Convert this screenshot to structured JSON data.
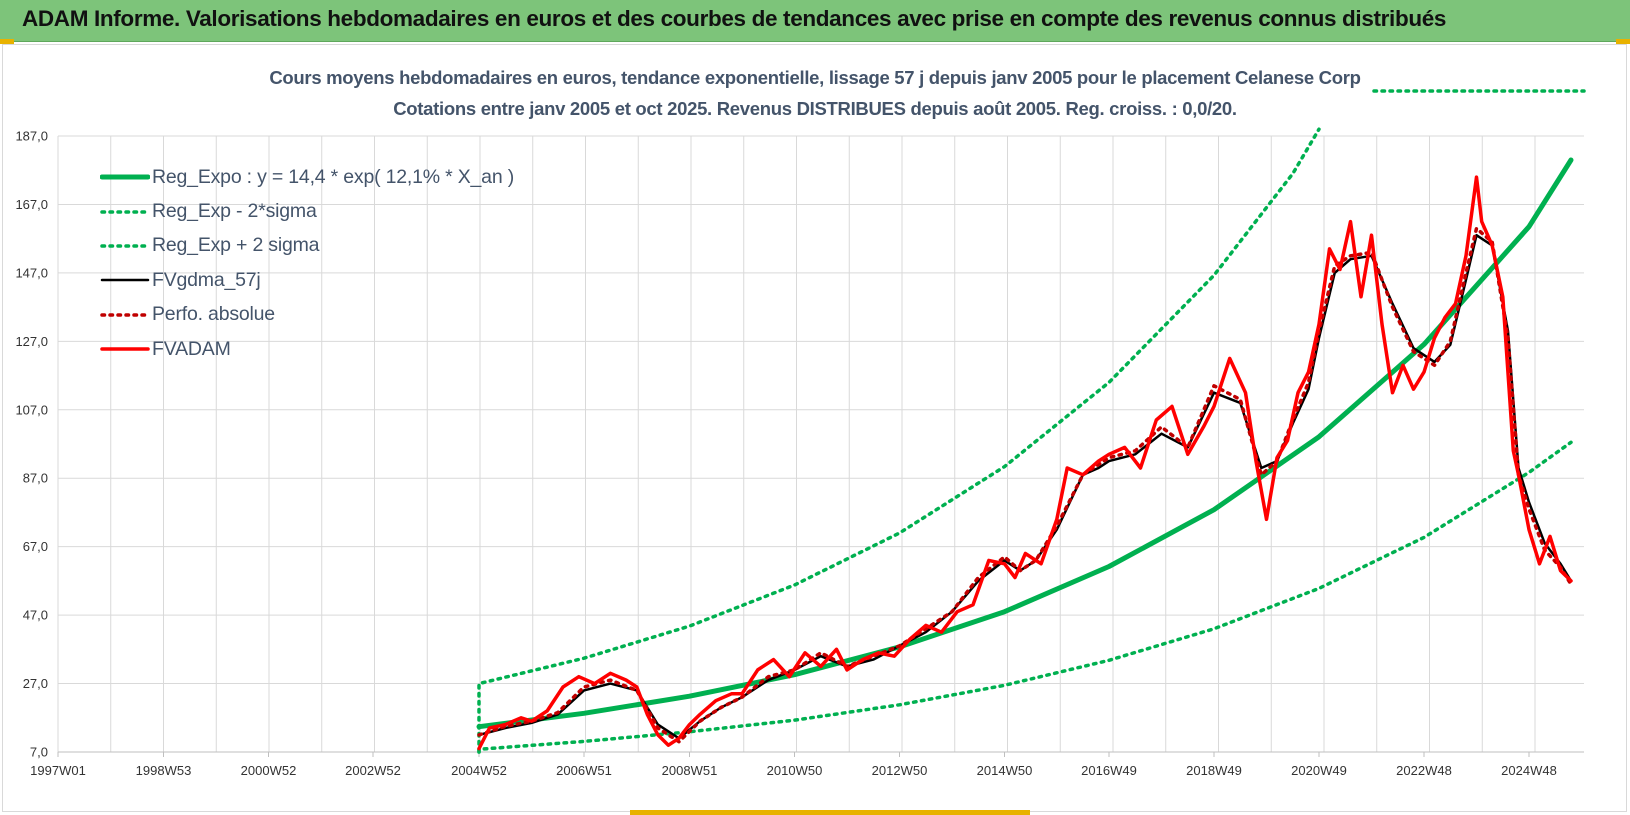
{
  "header": {
    "title": "ADAM Informe. Valorisations hebdomadaires en euros et des courbes de tendances avec prise en compte des revenus connus distribués"
  },
  "colors": {
    "header_bg": "#7dc47a",
    "accent": "#e8b200",
    "green": "#00b050",
    "black": "#000000",
    "red": "#ff0000",
    "dark_red": "#c00000"
  },
  "chart_data": {
    "type": "line",
    "title": "Cours moyens hebdomadaires en euros, tendance exponentielle, lissage 57 j depuis janv 2005  pour le placement Celanese Corp",
    "subtitle": "Cotations entre janv 2005 et oct 2025. Revenus DISTRIBUES depuis août 2005. Reg. croiss. : 0,0/20.",
    "xlabel": "",
    "ylabel": "",
    "x_ticks": [
      "1997W01",
      "1998W53",
      "2000W52",
      "2002W52",
      "2004W52",
      "2006W51",
      "2008W51",
      "2010W50",
      "2012W50",
      "2014W50",
      "2016W49",
      "2018W49",
      "2020W49",
      "2022W48",
      "2024W48"
    ],
    "y_ticks": [
      "7,0",
      "27,0",
      "47,0",
      "67,0",
      "87,0",
      "107,0",
      "127,0",
      "147,0",
      "167,0",
      "187,0"
    ],
    "xlim": [
      1997.0,
      2026.0
    ],
    "ylim": [
      7,
      187
    ],
    "grid": true,
    "legend_position": "top-left",
    "series": [
      {
        "name": "Reg_Expo : y = 14,4 * exp( 12,1% *  X_an )",
        "color": "#00b050",
        "style": "solid",
        "x": [
          2005.0,
          2007.0,
          2009.0,
          2011.0,
          2013.0,
          2015.0,
          2017.0,
          2019.0,
          2021.0,
          2023.0,
          2025.0,
          2025.8
        ],
        "y": [
          14.4,
          18.3,
          23.3,
          29.6,
          37.7,
          48.0,
          61.2,
          77.8,
          99.1,
          126.1,
          160.5,
          180.0
        ]
      },
      {
        "name": "Reg_Exp - 2*sigma",
        "color": "#00b050",
        "style": "dotted",
        "x": [
          2005.0,
          2005.0,
          2007.0,
          2009.0,
          2011.0,
          2013.0,
          2015.0,
          2017.0,
          2019.0,
          2021.0,
          2023.0,
          2025.0,
          2025.8
        ],
        "y": [
          7.0,
          7.8,
          10.1,
          12.9,
          16.3,
          20.8,
          26.5,
          33.8,
          43.0,
          54.8,
          69.7,
          88.7,
          97.5
        ]
      },
      {
        "name": "Reg_Exp + 2 sigma",
        "color": "#00b050",
        "style": "dotted",
        "x": [
          2005.0,
          2005.0,
          2007.0,
          2009.0,
          2011.0,
          2013.0,
          2015.0,
          2017.0,
          2019.0,
          2020.5,
          2021.0
        ],
        "y": [
          7.0,
          27.0,
          34.4,
          43.8,
          55.8,
          71.0,
          90.4,
          115.0,
          146.3,
          176.0,
          189.0
        ]
      },
      {
        "name": "FVgdma_57j",
        "color": "#000000",
        "style": "solid",
        "x": [
          2005.0,
          2005.5,
          2006.0,
          2006.5,
          2007.0,
          2007.5,
          2008.0,
          2008.4,
          2008.8,
          2009.2,
          2009.6,
          2010.0,
          2010.5,
          2011.0,
          2011.5,
          2012.0,
          2012.5,
          2013.0,
          2013.5,
          2014.0,
          2014.5,
          2015.0,
          2015.3,
          2015.6,
          2016.0,
          2016.5,
          2016.8,
          2017.0,
          2017.5,
          2018.0,
          2018.5,
          2019.0,
          2019.5,
          2019.9,
          2020.2,
          2020.5,
          2020.8,
          2021.0,
          2021.3,
          2021.6,
          2022.0,
          2022.4,
          2022.8,
          2023.2,
          2023.5,
          2023.8,
          2024.0,
          2024.3,
          2024.6,
          2024.8,
          2025.0,
          2025.3,
          2025.6,
          2025.8
        ],
        "y": [
          12.0,
          14.0,
          15.5,
          18.0,
          25.0,
          27.0,
          25.0,
          15.0,
          11.0,
          16.0,
          20.0,
          23.0,
          28.0,
          31.0,
          35.0,
          32.0,
          34.0,
          38.0,
          42.0,
          48.0,
          57.0,
          63.0,
          60.0,
          63.0,
          72.0,
          88.0,
          90.0,
          92.0,
          94.0,
          100.0,
          96.0,
          112.0,
          109.0,
          90.0,
          92.0,
          103.0,
          113.0,
          128.0,
          147.0,
          151.0,
          152.0,
          138.0,
          125.0,
          121.0,
          126.0,
          145.0,
          158.0,
          155.0,
          130.0,
          90.0,
          80.0,
          68.0,
          62.0,
          57.0
        ]
      },
      {
        "name": "Perfo. absolue",
        "color": "#c00000",
        "style": "dotted",
        "x": [
          2005.0,
          2005.5,
          2006.0,
          2006.5,
          2007.0,
          2007.5,
          2008.0,
          2008.4,
          2008.8,
          2009.2,
          2009.6,
          2010.0,
          2010.5,
          2011.0,
          2011.5,
          2012.0,
          2012.5,
          2013.0,
          2013.5,
          2014.0,
          2014.5,
          2015.0,
          2015.3,
          2015.6,
          2016.0,
          2016.5,
          2016.8,
          2017.0,
          2017.5,
          2018.0,
          2018.5,
          2019.0,
          2019.5,
          2019.9,
          2020.2,
          2020.5,
          2020.8,
          2021.0,
          2021.3,
          2021.6,
          2022.0,
          2022.4,
          2022.8,
          2023.2,
          2023.5,
          2023.8,
          2024.0,
          2024.3,
          2024.6,
          2024.8,
          2025.0,
          2025.3,
          2025.6,
          2025.8
        ],
        "y": [
          12.0,
          14.5,
          16.0,
          18.5,
          26.0,
          28.0,
          25.0,
          14.0,
          10.0,
          16.0,
          20.0,
          23.0,
          29.0,
          31.0,
          36.0,
          32.0,
          35.0,
          38.0,
          43.0,
          48.0,
          58.0,
          64.0,
          60.0,
          63.0,
          73.0,
          88.0,
          91.0,
          93.0,
          95.0,
          102.0,
          96.0,
          114.0,
          110.0,
          88.0,
          92.0,
          104.0,
          115.0,
          130.0,
          149.0,
          152.0,
          153.0,
          137.0,
          124.0,
          120.0,
          127.0,
          147.0,
          160.0,
          156.0,
          128.0,
          88.0,
          78.0,
          66.0,
          61.0,
          56.0
        ]
      },
      {
        "name": "FVADAM",
        "color": "#ff0000",
        "style": "solid",
        "x": [
          2005.0,
          2005.2,
          2005.5,
          2005.8,
          2006.0,
          2006.3,
          2006.6,
          2006.9,
          2007.2,
          2007.5,
          2007.8,
          2008.0,
          2008.2,
          2008.4,
          2008.6,
          2008.8,
          2009.0,
          2009.2,
          2009.5,
          2009.8,
          2010.0,
          2010.3,
          2010.6,
          2010.9,
          2011.2,
          2011.5,
          2011.8,
          2012.0,
          2012.3,
          2012.6,
          2012.9,
          2013.2,
          2013.5,
          2013.8,
          2014.1,
          2014.4,
          2014.7,
          2015.0,
          2015.2,
          2015.4,
          2015.7,
          2016.0,
          2016.2,
          2016.5,
          2016.8,
          2017.0,
          2017.3,
          2017.6,
          2017.9,
          2018.2,
          2018.5,
          2018.8,
          2019.0,
          2019.3,
          2019.6,
          2019.8,
          2020.0,
          2020.2,
          2020.4,
          2020.6,
          2020.8,
          2021.0,
          2021.2,
          2021.4,
          2021.6,
          2021.8,
          2022.0,
          2022.2,
          2022.4,
          2022.6,
          2022.8,
          2023.0,
          2023.2,
          2023.4,
          2023.6,
          2023.8,
          2024.0,
          2024.1,
          2024.3,
          2024.5,
          2024.7,
          2024.8,
          2025.0,
          2025.2,
          2025.4,
          2025.6,
          2025.8
        ],
        "y": [
          8.0,
          14.0,
          15.0,
          17.0,
          16.0,
          19.0,
          26.0,
          29.0,
          27.0,
          30.0,
          28.0,
          26.0,
          18.0,
          12.0,
          9.0,
          11.0,
          15.0,
          18.0,
          22.0,
          24.0,
          24.0,
          31.0,
          34.0,
          29.0,
          36.0,
          32.0,
          37.0,
          31.0,
          34.0,
          36.0,
          35.0,
          40.0,
          44.0,
          42.0,
          48.0,
          50.0,
          63.0,
          62.0,
          58.0,
          65.0,
          62.0,
          75.0,
          90.0,
          88.0,
          92.0,
          94.0,
          96.0,
          90.0,
          104.0,
          108.0,
          94.0,
          102.0,
          108.0,
          122.0,
          112.0,
          92.0,
          75.0,
          93.0,
          98.0,
          112.0,
          118.0,
          132.0,
          154.0,
          148.0,
          162.0,
          140.0,
          158.0,
          132.0,
          112.0,
          120.0,
          113.0,
          118.0,
          128.0,
          134.0,
          138.0,
          152.0,
          175.0,
          162.0,
          155.0,
          140.0,
          95.0,
          88.0,
          72.0,
          62.0,
          70.0,
          60.0,
          57.0
        ]
      }
    ]
  }
}
